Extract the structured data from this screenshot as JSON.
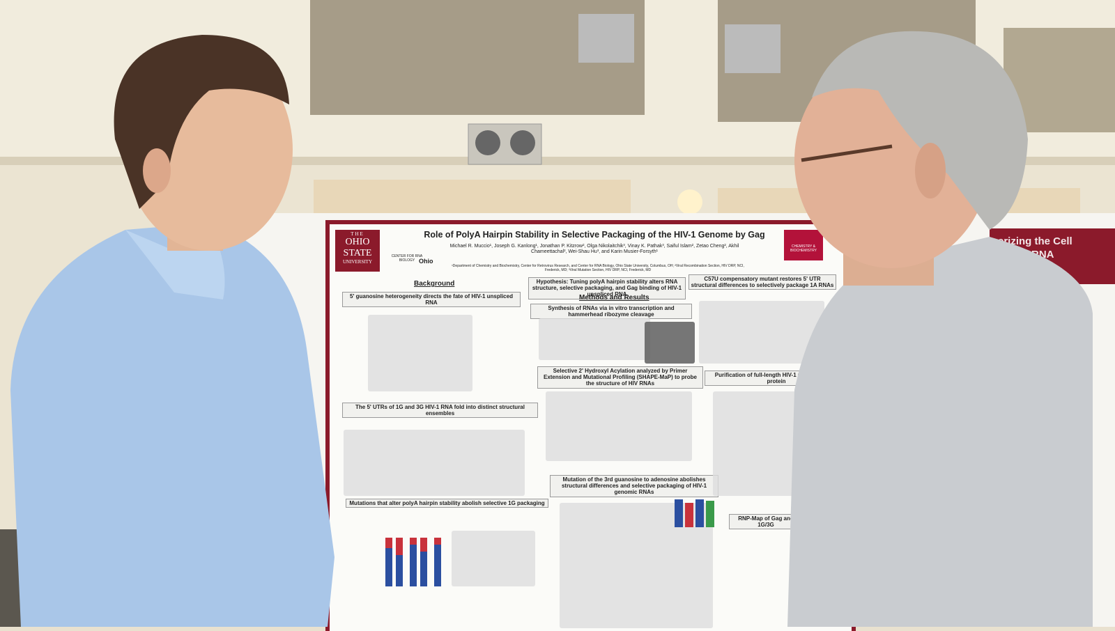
{
  "poster": {
    "logo": [
      "THE",
      "OHIO",
      "STATE",
      "UNIVERSITY"
    ],
    "center": "CENTER FOR RNA BIOLOGY",
    "center_word": "Ohio",
    "title": "Role of PolyA Hairpin Stability in Selective Packaging of the HIV-1 Genome by Gag",
    "authors": "Michael R. Muccio¹, Joseph G. Kanlong¹, Jonathan P. Kitzrow², Olga Nikolaitchik³, Vinay K. Pathak³, Saiful Islam², Zetao Cheng², Akhil Chameettachal², Wei-Shau Hu³, and Karin Musier-Forsyth¹",
    "affiliation": "¹Department of Chemistry and Biochemistry, Center for Retrovirus Research, and Center for RNA Biology, Ohio State University, Columbus, OH; ²Viral Recombination Section, HIV DRP, NCI, Frederick, MD; ³Viral Mutation Section, HIV DRP, NCI, Frederick, MD",
    "dept_logo": "CHEMISTRY & BIOCHEMISTRY",
    "sections": {
      "background": "Background",
      "guanosine": "5' guanosine heterogeneity directs the fate of HIV-1 unspliced RNA",
      "utrs": "The 5' UTRs of 1G and 3G HIV-1 RNA fold into distinct structural ensembles",
      "mutations": "Mutations that alter polyA hairpin stability abolish selective 1G packaging",
      "hypothesis": "Hypothesis: Tuning polyA hairpin stability alters RNA structure, selective packaging, and Gag binding of HIV-1 unspliced RNA",
      "methods": "Methods and Results",
      "synthesis": "Synthesis of RNAs via in vitro transcription and hammerhead ribozyme cleavage",
      "shape": "Selective 2' Hydroxyl Acylation analyzed by Primer Extension and Mutational Profiling (SHAPE-MaP) to probe the structure of HIV RNAs",
      "third": "Mutation of the 3rd guanosine to adenosine abolishes structural differences and selective packaging of HIV-1 genomic RNAs",
      "c57u": "C57U compensatory mutant restores 5' UTR structural differences to selectively package 1A RNAs",
      "purification": "Purification of full-length HIV-1 Gag packaging protein",
      "rnp": "RNP-Map of Gag and 1G/3G"
    }
  },
  "neighbor_poster": {
    "title": [
      "erizing the Cell",
      "RNA"
    ]
  }
}
